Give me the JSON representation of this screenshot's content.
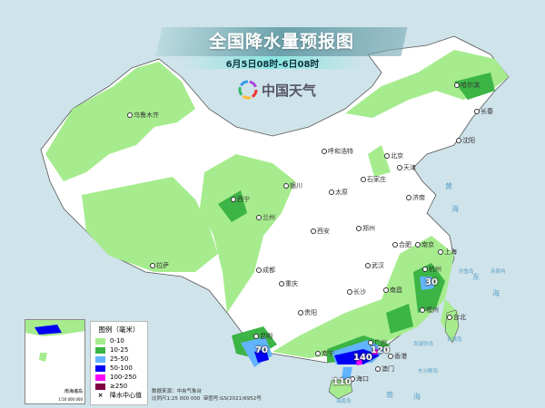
{
  "header": {
    "title": "全国降水量预报图",
    "subtitle": "6月5日08时-6日08时",
    "logo_text": "中国天气"
  },
  "cities": [
    "乌鲁木齐",
    "哈尔滨",
    "长春",
    "沈阳",
    "呼和浩特",
    "北京",
    "天津",
    "石家庄",
    "太原",
    "银川",
    "西宁",
    "兰州",
    "济南",
    "郑州",
    "西安",
    "拉萨",
    "成都",
    "合肥",
    "南京",
    "上海",
    "武汉",
    "杭州",
    "重庆",
    "长沙",
    "南昌",
    "贵阳",
    "福州",
    "台北",
    "昆明",
    "南宁",
    "广州",
    "香港",
    "澳门",
    "海口"
  ],
  "seas": [
    "东",
    "海",
    "南",
    "海",
    "黄",
    "海",
    "台湾岛",
    "钓鱼岛",
    "赤尾屿",
    "澎湖列岛",
    "东沙群岛",
    "海南岛"
  ],
  "rain_centers": [
    {
      "value": "70"
    },
    {
      "value": "140"
    },
    {
      "value": "120"
    },
    {
      "value": "110"
    },
    {
      "value": "30"
    }
  ],
  "legend": {
    "title": "图例（毫米）",
    "items": [
      {
        "label": "0-10",
        "color": "#a6ec8e"
      },
      {
        "label": "10-25",
        "color": "#3cb446"
      },
      {
        "label": "25-50",
        "color": "#63b4ff"
      },
      {
        "label": "50-100",
        "color": "#0000f5"
      },
      {
        "label": "100-250",
        "color": "#fa00fa"
      },
      {
        "label": "≥250",
        "color": "#800040"
      }
    ],
    "center_label": "降水中心值"
  },
  "inset": {
    "title": "南海诸岛",
    "scale": "1:50 000 000"
  },
  "footer": {
    "source": "数据来源：中央气象台",
    "scale": "比例尺1:25 000 000",
    "approval": "审图号:GS(2021)6952号"
  }
}
